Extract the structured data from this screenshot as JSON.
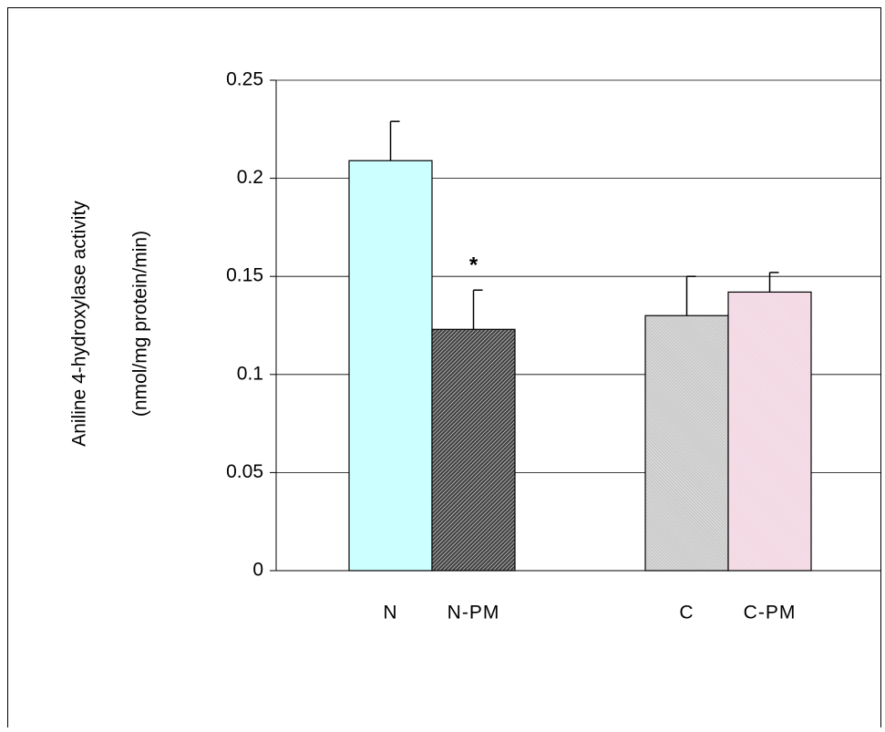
{
  "chart_data": {
    "type": "bar",
    "y_label_lines": [
      "Aniline 4-hydroxylase activity",
      "(nmol/mg protein/min)"
    ],
    "categories": [
      "N",
      "N-PM",
      "C",
      "C-PM"
    ],
    "values": [
      0.209,
      0.123,
      0.13,
      0.142
    ],
    "errors": [
      0.02,
      0.02,
      0.02,
      0.01
    ],
    "colors": [
      "#ccffff",
      "#444444",
      "#c8c8c8",
      "#f2d6e2"
    ],
    "annotation": "*",
    "ylim": [
      0,
      0.25
    ],
    "yticks": [
      0,
      0.05,
      0.1,
      0.15,
      0.2,
      0.25
    ],
    "grid": true
  }
}
